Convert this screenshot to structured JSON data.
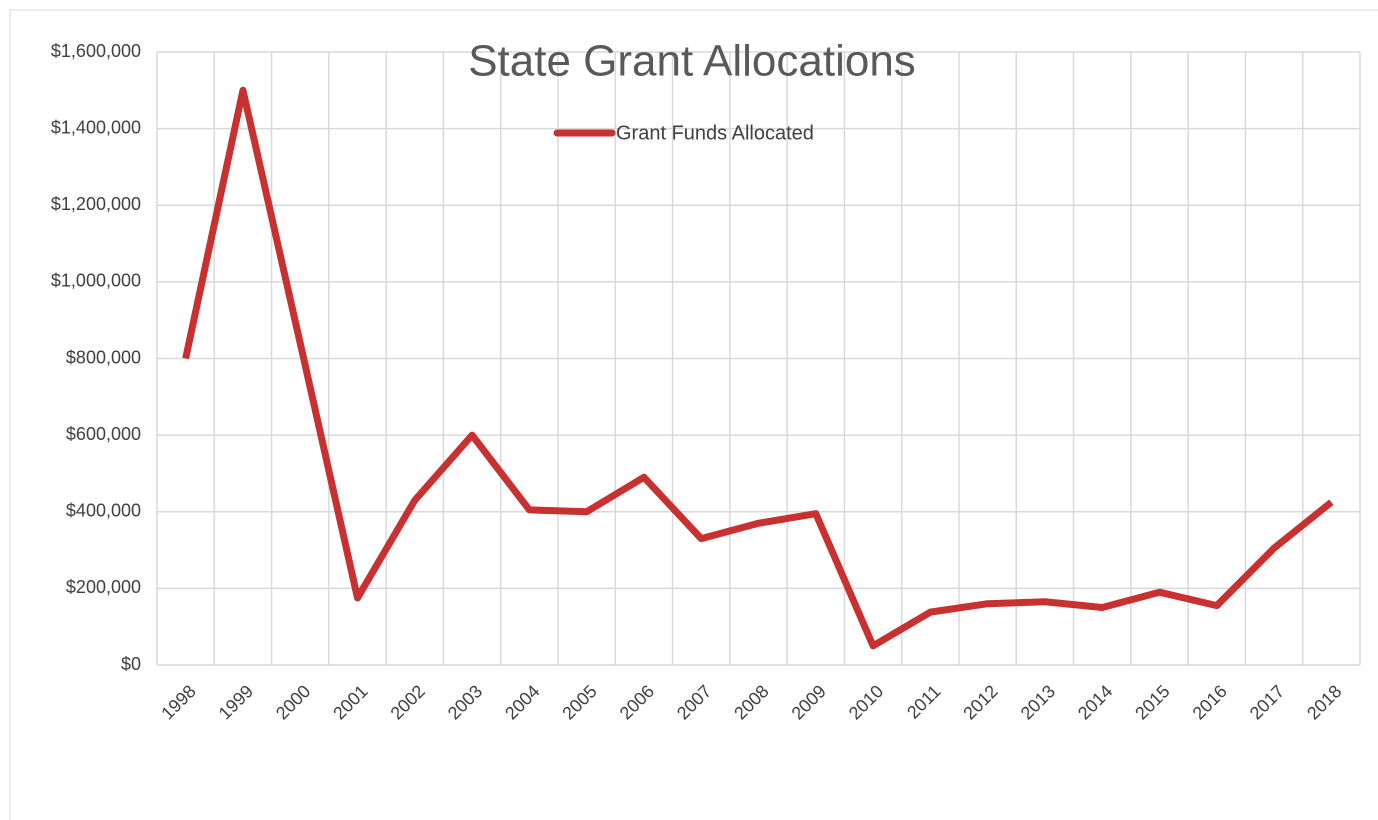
{
  "chart_data": {
    "type": "line",
    "title": "State Grant Allocations",
    "categories": [
      "1998",
      "1999",
      "2000",
      "2001",
      "2002",
      "2003",
      "2004",
      "2005",
      "2006",
      "2007",
      "2008",
      "2009",
      "2010",
      "2011",
      "2012",
      "2013",
      "2014",
      "2015",
      "2016",
      "2017",
      "2018"
    ],
    "series": [
      {
        "name": "Grant Funds Allocated",
        "color": "#c8312f",
        "values": [
          800000,
          1500000,
          840000,
          175000,
          430000,
          600000,
          405000,
          400000,
          490000,
          330000,
          370000,
          395000,
          50000,
          138000,
          160000,
          165000,
          150000,
          190000,
          155000,
          305000,
          425000
        ]
      }
    ],
    "ylim": [
      0,
      1600000
    ],
    "yticks": [
      {
        "value": 0,
        "label": "$0"
      },
      {
        "value": 200000,
        "label": "$200,000"
      },
      {
        "value": 400000,
        "label": "$400,000"
      },
      {
        "value": 600000,
        "label": "$600,000"
      },
      {
        "value": 800000,
        "label": "$800,000"
      },
      {
        "value": 1000000,
        "label": "$1,000,000"
      },
      {
        "value": 1200000,
        "label": "$1,200,000"
      },
      {
        "value": 1400000,
        "label": "$1,400,000"
      },
      {
        "value": 1600000,
        "label": "$1,600,000"
      }
    ],
    "grid": true,
    "legend": "top"
  }
}
